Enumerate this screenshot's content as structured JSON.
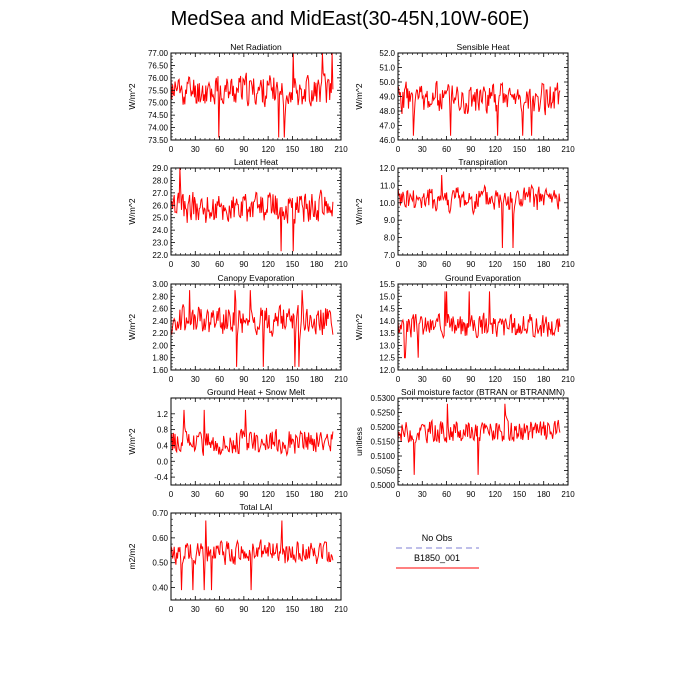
{
  "title": "MedSea and MidEast(30-45N,10W-60E)",
  "colors": {
    "series": "#ff0000",
    "no_obs": "#9999dd",
    "axis": "#000000"
  },
  "legend": {
    "entries": [
      {
        "name": "No Obs",
        "color": "#9999dd",
        "dashed": true
      },
      {
        "name": "B1850_001",
        "color": "#ff0000",
        "dashed": false
      }
    ]
  },
  "chart_data": [
    {
      "type": "line",
      "title": "Net Radiation",
      "ylabel": "W/m^2",
      "xlim": [
        0,
        210
      ],
      "ylim": [
        73.5,
        77.0
      ],
      "xticks": [
        0,
        30,
        60,
        90,
        120,
        150,
        180,
        210
      ],
      "xtick_labels": [
        "0",
        "30",
        "60",
        "90",
        "120",
        "150",
        "180",
        "210"
      ],
      "yticks": [
        73.5,
        74.0,
        74.5,
        75.0,
        75.5,
        76.0,
        76.5,
        77.0
      ],
      "ytick_labels": [
        "73.50",
        "74.00",
        "74.50",
        "75.00",
        "75.50",
        "76.00",
        "76.50",
        "77.00"
      ],
      "series": [
        {
          "name": "B1850_001",
          "seed": 11,
          "mean": 75.5,
          "amp": 0.6,
          "min": 73.6,
          "max": 77.0
        }
      ]
    },
    {
      "type": "line",
      "title": "Sensible Heat",
      "ylabel": "W/m^2",
      "xlim": [
        0,
        210
      ],
      "ylim": [
        46.0,
        52.0
      ],
      "xticks": [
        0,
        30,
        60,
        90,
        120,
        150,
        180,
        210
      ],
      "xtick_labels": [
        "0",
        "30",
        "60",
        "90",
        "120",
        "150",
        "180",
        "210"
      ],
      "yticks": [
        46,
        47,
        48,
        49,
        50,
        51,
        52
      ],
      "ytick_labels": [
        "46.0",
        "47.0",
        "48.0",
        "49.0",
        "50.0",
        "51.0",
        "52.0"
      ],
      "series": [
        {
          "name": "B1850_001",
          "seed": 23,
          "mean": 48.9,
          "amp": 1.0,
          "min": 46.3,
          "max": 51.9
        }
      ]
    },
    {
      "type": "line",
      "title": "Latent Heat",
      "ylabel": "W/m^2",
      "xlim": [
        0,
        210
      ],
      "ylim": [
        22.0,
        29.0
      ],
      "xticks": [
        0,
        30,
        60,
        90,
        120,
        150,
        180,
        210
      ],
      "xtick_labels": [
        "0",
        "30",
        "60",
        "90",
        "120",
        "150",
        "180",
        "210"
      ],
      "yticks": [
        22,
        23,
        24,
        25,
        26,
        27,
        28,
        29
      ],
      "ytick_labels": [
        "22.0",
        "23.0",
        "24.0",
        "25.0",
        "26.0",
        "27.0",
        "28.0",
        "29.0"
      ],
      "series": [
        {
          "name": "B1850_001",
          "seed": 37,
          "mean": 25.8,
          "amp": 1.2,
          "min": 22.3,
          "max": 29.0
        }
      ]
    },
    {
      "type": "line",
      "title": "Transpiration",
      "ylabel": "W/m^2",
      "xlim": [
        0,
        210
      ],
      "ylim": [
        7.0,
        12.0
      ],
      "xticks": [
        0,
        30,
        60,
        90,
        120,
        150,
        180,
        210
      ],
      "xtick_labels": [
        "0",
        "30",
        "60",
        "90",
        "120",
        "150",
        "180",
        "210"
      ],
      "yticks": [
        7,
        8,
        9,
        10,
        11,
        12
      ],
      "ytick_labels": [
        "7.0",
        "8.0",
        "9.0",
        "10.0",
        "11.0",
        "12.0"
      ],
      "series": [
        {
          "name": "B1850_001",
          "seed": 41,
          "mean": 10.2,
          "amp": 0.7,
          "min": 7.4,
          "max": 11.6
        }
      ]
    },
    {
      "type": "line",
      "title": "Canopy Evaporation",
      "ylabel": "W/m^2",
      "xlim": [
        0,
        210
      ],
      "ylim": [
        1.6,
        3.0
      ],
      "xticks": [
        0,
        30,
        60,
        90,
        120,
        150,
        180,
        210
      ],
      "xtick_labels": [
        "0",
        "30",
        "60",
        "90",
        "120",
        "150",
        "180",
        "210"
      ],
      "yticks": [
        1.6,
        1.8,
        2.0,
        2.2,
        2.4,
        2.6,
        2.8,
        3.0
      ],
      "ytick_labels": [
        "1.60",
        "1.80",
        "2.00",
        "2.20",
        "2.40",
        "2.60",
        "2.80",
        "3.00"
      ],
      "series": [
        {
          "name": "B1850_001",
          "seed": 53,
          "mean": 2.4,
          "amp": 0.22,
          "min": 1.65,
          "max": 2.9
        }
      ]
    },
    {
      "type": "line",
      "title": "Ground Evaporation",
      "ylabel": "W/m^2",
      "xlim": [
        0,
        210
      ],
      "ylim": [
        12.0,
        15.5
      ],
      "xticks": [
        0,
        30,
        60,
        90,
        120,
        150,
        180,
        210
      ],
      "xtick_labels": [
        "0",
        "30",
        "60",
        "90",
        "120",
        "150",
        "180",
        "210"
      ],
      "yticks": [
        12.0,
        12.5,
        13.0,
        13.5,
        14.0,
        14.5,
        15.0,
        15.5
      ],
      "ytick_labels": [
        "12.0",
        "12.5",
        "13.0",
        "13.5",
        "14.0",
        "14.5",
        "15.0",
        "15.5"
      ],
      "series": [
        {
          "name": "B1850_001",
          "seed": 67,
          "mean": 13.8,
          "amp": 0.45,
          "min": 12.5,
          "max": 15.2
        }
      ]
    },
    {
      "type": "line",
      "title": "Ground Heat + Snow Melt",
      "ylabel": "W/m^2",
      "xlim": [
        0,
        210
      ],
      "ylim": [
        -0.6,
        1.6
      ],
      "xticks": [
        0,
        30,
        60,
        90,
        120,
        150,
        180,
        210
      ],
      "xtick_labels": [
        "0",
        "30",
        "60",
        "90",
        "120",
        "150",
        "180",
        "210"
      ],
      "yticks": [
        -0.4,
        0.0,
        0.4,
        0.8,
        1.2
      ],
      "ytick_labels": [
        "-0.4",
        "0.0",
        "0.4",
        "0.8",
        "1.2"
      ],
      "series": [
        {
          "name": "B1850_001",
          "seed": 79,
          "mean": 0.5,
          "amp": 0.3,
          "min": -0.45,
          "max": 1.3
        }
      ]
    },
    {
      "type": "line",
      "title": "Soil moisture factor (BTRAN or BTRANMN)",
      "ylabel": "unitless",
      "xlim": [
        0,
        210
      ],
      "ylim": [
        0.5,
        0.53
      ],
      "xticks": [
        0,
        30,
        60,
        90,
        120,
        150,
        180,
        210
      ],
      "xtick_labels": [
        "0",
        "30",
        "60",
        "90",
        "120",
        "150",
        "180",
        "210"
      ],
      "yticks": [
        0.5,
        0.505,
        0.51,
        0.515,
        0.52,
        0.525,
        0.53
      ],
      "ytick_labels": [
        "0.5000",
        "0.5050",
        "0.5100",
        "0.5150",
        "0.5200",
        "0.5250",
        "0.5300"
      ],
      "series": [
        {
          "name": "B1850_001",
          "seed": 83,
          "mean": 0.5185,
          "amp": 0.0035,
          "min": 0.5035,
          "max": 0.528
        }
      ]
    },
    {
      "type": "line",
      "title": "Total LAI",
      "ylabel": "m2/m2",
      "xlim": [
        0,
        210
      ],
      "ylim": [
        0.35,
        0.7
      ],
      "xticks": [
        0,
        30,
        60,
        90,
        120,
        150,
        180,
        210
      ],
      "xtick_labels": [
        "0",
        "30",
        "60",
        "90",
        "120",
        "150",
        "180",
        "210"
      ],
      "yticks": [
        0.4,
        0.5,
        0.6,
        0.7
      ],
      "ytick_labels": [
        "0.40",
        "0.50",
        "0.60",
        "0.70"
      ],
      "series": [
        {
          "name": "B1850_001",
          "seed": 97,
          "mean": 0.54,
          "amp": 0.045,
          "min": 0.39,
          "max": 0.67
        }
      ]
    }
  ]
}
